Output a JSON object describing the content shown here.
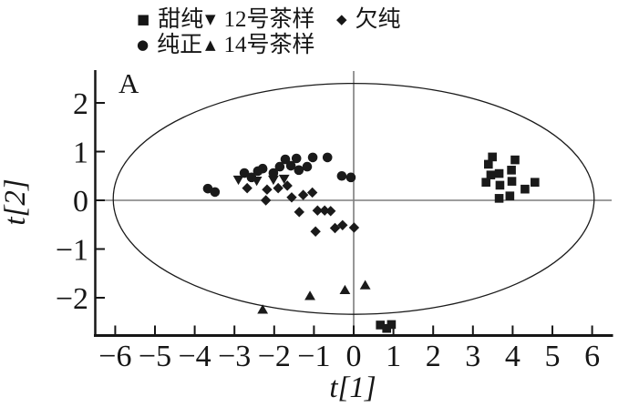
{
  "figure_label": "A",
  "legend": {
    "items": [
      {
        "glyph": "■",
        "label": "甜纯",
        "series": "sweet-pure"
      },
      {
        "glyph": "▼",
        "label": "12号茶样",
        "series": "tea-sample-12"
      },
      {
        "glyph": "◆",
        "label": "欠纯",
        "series": "under-pure"
      },
      {
        "glyph": "●",
        "label": "纯正",
        "series": "pure"
      },
      {
        "glyph": "▲",
        "label": "14号茶样",
        "series": "tea-sample-14"
      }
    ]
  },
  "axes": {
    "x": {
      "label": "t[1]",
      "tick_labels": [
        "−6",
        "−5",
        "−4",
        "−3",
        "−2",
        "−1",
        "0",
        "1",
        "2",
        "3",
        "4",
        "5",
        "6"
      ]
    },
    "y": {
      "label": "t[2]",
      "tick_labels": [
        "2",
        "1",
        "0",
        "−1",
        "−2"
      ]
    }
  },
  "colors": {
    "marker": "#1a1a1a",
    "crosshair": "#7d7d7d",
    "axis": "#161616",
    "ellipse": "#1a1a1a"
  },
  "chart_data": {
    "type": "scatter",
    "title": "",
    "xlabel": "t[1]",
    "ylabel": "t[2]",
    "xlim": [
      -6.5,
      6.5
    ],
    "ylim": [
      -2.8,
      2.7
    ],
    "x_ticks": [
      -6,
      -5,
      -4,
      -3,
      -2,
      -1,
      0,
      1,
      2,
      3,
      4,
      5,
      6
    ],
    "y_ticks": [
      2,
      1,
      0,
      -1,
      -2
    ],
    "grid": false,
    "legend_position": "top",
    "origin_crosshair": true,
    "ellipse": {
      "cx": 0.0,
      "cy": 0.03,
      "rx": 6.05,
      "ry": 2.37
    },
    "series": [
      {
        "name": "甜纯",
        "key": "sweet-pure",
        "marker": "square",
        "color": "#1a1a1a",
        "points": [
          [
            3.49,
            0.89
          ],
          [
            3.39,
            0.74
          ],
          [
            4.06,
            0.83
          ],
          [
            3.97,
            0.62
          ],
          [
            3.45,
            0.52
          ],
          [
            3.66,
            0.55
          ],
          [
            3.33,
            0.37
          ],
          [
            3.68,
            0.31
          ],
          [
            3.98,
            0.39
          ],
          [
            4.31,
            0.23
          ],
          [
            4.56,
            0.37
          ],
          [
            3.93,
            0.09
          ],
          [
            3.66,
            0.04
          ],
          [
            0.67,
            -2.56
          ],
          [
            0.83,
            -2.63
          ],
          [
            0.95,
            -2.55
          ]
        ]
      },
      {
        "name": "纯正",
        "key": "pure",
        "marker": "circle",
        "color": "#1a1a1a",
        "points": [
          [
            -3.67,
            0.24
          ],
          [
            -3.49,
            0.17
          ],
          [
            -2.75,
            0.56
          ],
          [
            -2.57,
            0.47
          ],
          [
            -2.41,
            0.6
          ],
          [
            -2.29,
            0.65
          ],
          [
            -2.02,
            0.56
          ],
          [
            -1.86,
            0.69
          ],
          [
            -1.72,
            0.84
          ],
          [
            -1.58,
            0.71
          ],
          [
            -1.44,
            0.86
          ],
          [
            -1.38,
            0.62
          ],
          [
            -1.17,
            0.69
          ],
          [
            -1.03,
            0.88
          ],
          [
            -0.66,
            0.88
          ],
          [
            -0.3,
            0.5
          ],
          [
            -0.07,
            0.47
          ]
        ]
      },
      {
        "name": "12号茶样",
        "key": "tea-sample-12",
        "marker": "triangle-down",
        "color": "#1a1a1a",
        "points": [
          [
            -2.9,
            0.42
          ],
          [
            -2.44,
            0.4
          ],
          [
            -2.02,
            0.42
          ],
          [
            -1.75,
            0.44
          ]
        ]
      },
      {
        "name": "14号茶样",
        "key": "tea-sample-14",
        "marker": "triangle-up",
        "color": "#1a1a1a",
        "points": [
          [
            -2.29,
            -2.24
          ],
          [
            -1.1,
            -1.96
          ],
          [
            -0.22,
            -1.84
          ],
          [
            0.29,
            -1.74
          ]
        ]
      },
      {
        "name": "欠纯",
        "key": "under-pure",
        "marker": "diamond",
        "color": "#1a1a1a",
        "points": [
          [
            -2.68,
            0.25
          ],
          [
            -2.18,
            0.22
          ],
          [
            -1.9,
            0.25
          ],
          [
            -2.21,
            0.0
          ],
          [
            -1.67,
            0.3
          ],
          [
            -1.56,
            0.06
          ],
          [
            -1.27,
            0.11
          ],
          [
            -1.04,
            0.16
          ],
          [
            -1.37,
            -0.24
          ],
          [
            -0.91,
            -0.21
          ],
          [
            -0.73,
            -0.21
          ],
          [
            -0.58,
            -0.22
          ],
          [
            -0.96,
            -0.64
          ],
          [
            -0.47,
            -0.57
          ],
          [
            -0.28,
            -0.51
          ],
          [
            0.01,
            -0.56
          ]
        ]
      }
    ]
  }
}
